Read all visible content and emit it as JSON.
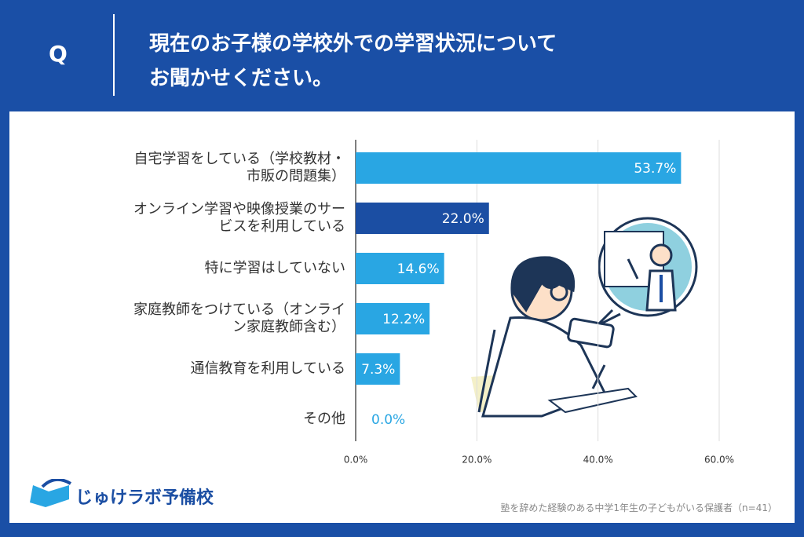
{
  "header": {
    "q": "Q",
    "question": "現在のお子様の学校外での学習状況について\nお聞かせください。"
  },
  "chart_data": {
    "type": "hbar",
    "categories": [
      "自宅学習をしている（学校教材・\n市販の問題集）",
      "オンライン学習や映像授業のサー\nビスを利用している",
      "特に学習はしていない",
      "家庭教師をつけている（オンライ\nン家庭教師含む）",
      "通信教育を利用している",
      "その他"
    ],
    "values": [
      53.7,
      22.0,
      14.6,
      12.2,
      7.3,
      0.0
    ],
    "value_labels": [
      "53.7%",
      "22.0%",
      "14.6%",
      "12.2%",
      "7.3%",
      "0.0%"
    ],
    "colors": [
      "#29a6e3",
      "#1b4ea3",
      "#29a6e3",
      "#29a6e3",
      "#29a6e3",
      "#29a6e3"
    ],
    "xlim": [
      0,
      60
    ],
    "xticks": [
      {
        "value": 0,
        "label": "0.0%"
      },
      {
        "value": 20,
        "label": "20.0%"
      },
      {
        "value": 40,
        "label": "40.0%"
      },
      {
        "value": 60,
        "label": "60.0%"
      }
    ],
    "grid": true
  },
  "footer": {
    "logo": "じゅけラボ予備校",
    "note": "塾を辞めた経験のある中学1年生の子どもがいる保護者（n=41）"
  }
}
